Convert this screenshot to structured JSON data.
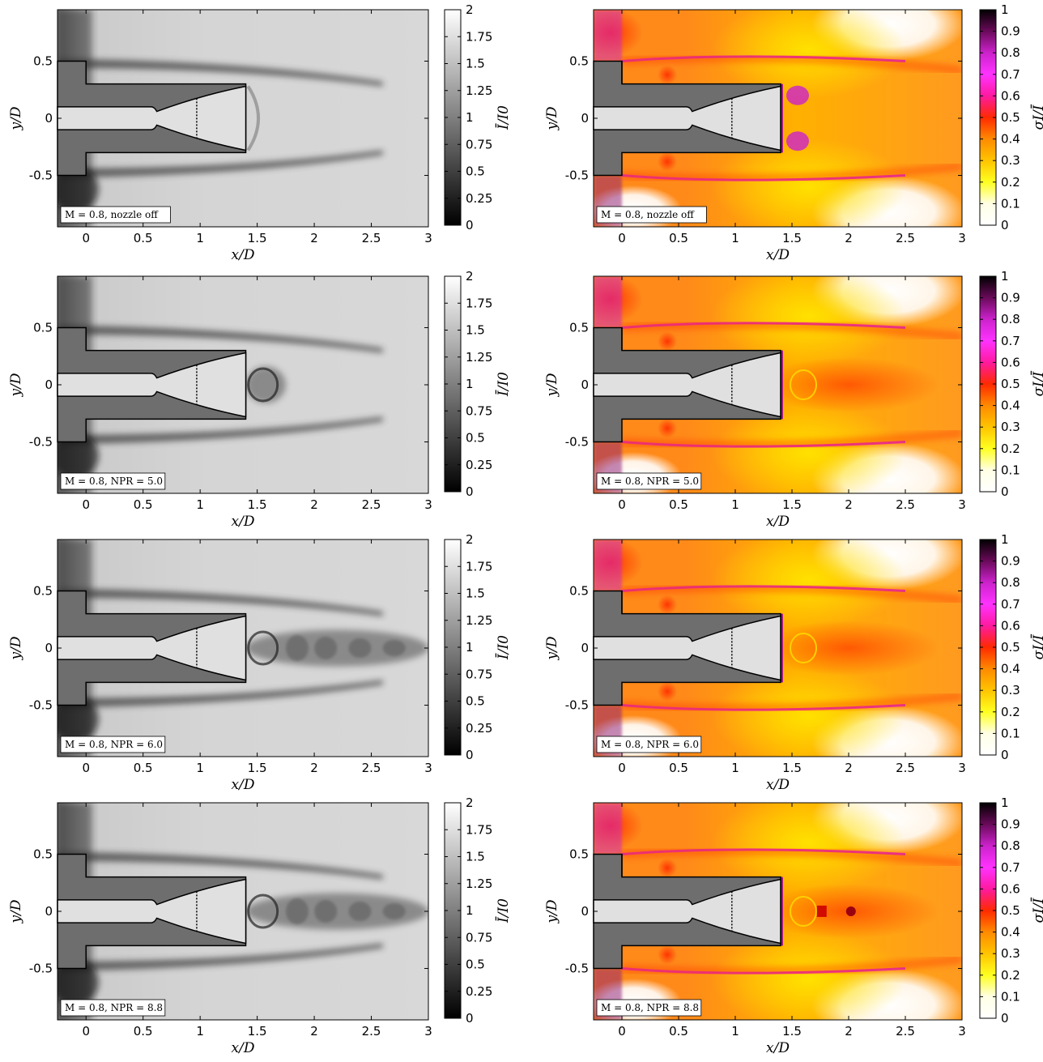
{
  "figure": {
    "rows": [
      {
        "annotation": "M = 0.8, nozzle off",
        "jet": "off"
      },
      {
        "annotation": "M = 0.8, NPR = 5.0",
        "jet": "npr5"
      },
      {
        "annotation": "M = 0.8, NPR = 6.0",
        "jet": "npr6"
      },
      {
        "annotation": "M = 0.8, NPR = 8.8",
        "jet": "npr8"
      }
    ]
  },
  "chart_data": [
    {
      "type": "heatmap",
      "quantity": "mean intensity",
      "xlabel": "x/D",
      "ylabel": "y/D",
      "colorbar_label": "Ī/I0",
      "colormap": "gray",
      "xlim": [
        -0.25,
        3.0
      ],
      "ylim": [
        -0.95,
        0.95
      ],
      "xticks": [
        0,
        0.5,
        1,
        1.5,
        2,
        2.5,
        3
      ],
      "xtick_labels": [
        "0",
        "0.5",
        "1",
        "1.5",
        "2",
        "2.5",
        "3"
      ],
      "yticks": [
        0.5,
        0,
        -0.5
      ],
      "ytick_labels": [
        "0.5",
        "0",
        "-0.5"
      ],
      "clim": [
        0,
        2
      ],
      "cticks": [
        0,
        0.25,
        0.5,
        0.75,
        1,
        1.25,
        1.5,
        1.75,
        2
      ],
      "ctick_labels": [
        "0",
        "0.25",
        "0.5",
        "0.75",
        "1",
        "1.25",
        "1.5",
        "1.75",
        "2"
      ],
      "panels": [
        "M = 0.8, nozzle off",
        "M = 0.8, NPR = 5.0",
        "M = 0.8, NPR = 6.0",
        "M = 0.8, NPR = 8.8"
      ]
    },
    {
      "type": "heatmap",
      "quantity": "normalized intensity fluctuation",
      "xlabel": "x/D",
      "ylabel": "y/D",
      "colorbar_label": "σI/Ī",
      "colormap": "hot-magenta",
      "xlim": [
        -0.25,
        3.0
      ],
      "ylim": [
        -0.95,
        0.95
      ],
      "xticks": [
        0,
        0.5,
        1,
        1.5,
        2,
        2.5,
        3
      ],
      "xtick_labels": [
        "0",
        "0.5",
        "1",
        "1.5",
        "2",
        "2.5",
        "3"
      ],
      "yticks": [
        0.5,
        0,
        -0.5
      ],
      "ytick_labels": [
        "0.5",
        "0",
        "-0.5"
      ],
      "clim": [
        0,
        1
      ],
      "cticks": [
        0,
        0.1,
        0.2,
        0.3,
        0.4,
        0.5,
        0.6,
        0.7,
        0.8,
        0.9,
        1
      ],
      "ctick_labels": [
        "0",
        "0.1",
        "0.2",
        "0.3",
        "0.4",
        "0.5",
        "0.6",
        "0.7",
        "0.8",
        "0.9",
        "1"
      ],
      "panels": [
        "M = 0.8, nozzle off",
        "M = 0.8, NPR = 5.0",
        "M = 0.8, NPR = 6.0",
        "M = 0.8, NPR = 8.8"
      ]
    }
  ],
  "model_geometry": {
    "afterbody_x_end": 1.4,
    "afterbody_y_half": 0.3,
    "sting_y_half": 0.5,
    "forebody_x_end": 0.0,
    "throat_x": 0.62,
    "throat_y": 0.06,
    "inlet_y": 0.1,
    "inlet_x_end": 0.57,
    "exit_y": 0.28,
    "dashed_x": 0.97
  }
}
